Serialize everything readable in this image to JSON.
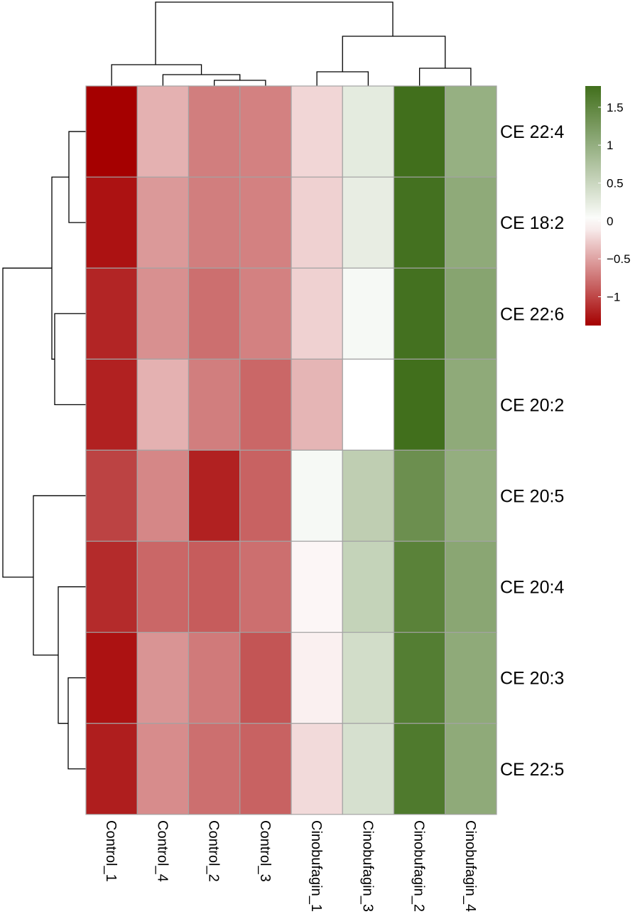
{
  "chart_data": {
    "type": "heatmap",
    "title": "",
    "columns": [
      "Control_1",
      "Control_4",
      "Control_2",
      "Control_3",
      "Cinobufagin_1",
      "Cinobufagin_3",
      "Cinobufagin_2",
      "Cinobufagin_4"
    ],
    "rows": [
      "CE 22:4",
      "CE 18:2",
      "CE 22:6",
      "CE 20:2",
      "CE 20:5",
      "CE 20:4",
      "CE 20:3",
      "CE 22:5"
    ],
    "values": [
      [
        -1.4,
        -0.42,
        -0.7,
        -0.68,
        -0.22,
        0.25,
        1.78,
        0.98
      ],
      [
        -1.28,
        -0.55,
        -0.7,
        -0.68,
        -0.25,
        0.22,
        1.75,
        1.05
      ],
      [
        -1.18,
        -0.6,
        -0.78,
        -0.68,
        -0.25,
        0.08,
        1.75,
        1.12
      ],
      [
        -1.2,
        -0.42,
        -0.7,
        -0.82,
        -0.4,
        0.0,
        1.85,
        1.05
      ],
      [
        -1.02,
        -0.65,
        -1.2,
        -0.85,
        0.08,
        0.6,
        1.38,
        1.0
      ],
      [
        -1.15,
        -0.82,
        -0.88,
        -0.78,
        -0.05,
        0.55,
        1.55,
        1.1
      ],
      [
        -1.28,
        -0.58,
        -0.72,
        -0.92,
        -0.08,
        0.42,
        1.6,
        1.05
      ],
      [
        -1.22,
        -0.62,
        -0.78,
        -0.85,
        -0.2,
        0.38,
        1.65,
        1.05
      ]
    ],
    "color_scale": {
      "min": -1.38,
      "mid": 0.0,
      "max": 1.78,
      "low_color": "#a50000",
      "mid_color": "#ffffff",
      "high_color": "#416f1c"
    },
    "legend": {
      "placement": "top-right",
      "ticks": [
        1.5,
        1,
        0.5,
        0,
        -0.5,
        -1
      ],
      "tick_labels": [
        "1.5",
        "1",
        "0.5",
        "0",
        "−0.5",
        "−1"
      ]
    },
    "col_dendrogram_order": "((Control_1,(Control_4,(Control_2,Control_3))),((Cinobufagin_1,Cinobufagin_3),(Cinobufagin_2,Cinobufagin_4)))",
    "row_dendrogram_order": "(((CE 22:4,CE 18:2),(CE 22:6,CE 20:2)),(CE 20:5,(CE 20:4,(CE 20:3,CE 22:5))))"
  }
}
